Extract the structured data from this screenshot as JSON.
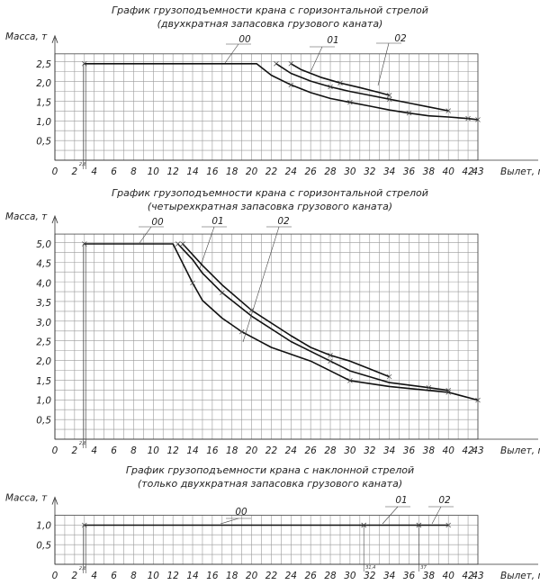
{
  "colors": {
    "curve": "#111111",
    "grid": "#9a9a9a",
    "text": "#222222"
  },
  "chart_data": [
    {
      "type": "line",
      "title": "График грузоподъемности крана с горизонтальной стрелой",
      "subtitle": "(двухкратная запасовка грузового каната)",
      "ylabel": "Масса, т",
      "xlabel": "Вылет, м",
      "xlim": [
        0,
        43
      ],
      "ylim": [
        0,
        2.5
      ],
      "x_ticks": [
        "0",
        "2",
        "4",
        "6",
        "8",
        "10",
        "12",
        "14",
        "16",
        "18",
        "20",
        "22",
        "24",
        "26",
        "28",
        "30",
        "32",
        "34",
        "36",
        "38",
        "40",
        "42",
        "43"
      ],
      "y_ticks": [
        "0,5",
        "1,0",
        "1,5",
        "2,0",
        "2,5"
      ],
      "min_reach_label": "2,8",
      "series": [
        {
          "name": "00",
          "points": [
            [
              3,
              2.5
            ],
            [
              20.5,
              2.5
            ],
            [
              22,
              2.2
            ],
            [
              24,
              1.95
            ],
            [
              26,
              1.75
            ],
            [
              28,
              1.6
            ],
            [
              30,
              1.5
            ],
            [
              32,
              1.4
            ],
            [
              34,
              1.3
            ],
            [
              36,
              1.22
            ],
            [
              38,
              1.15
            ],
            [
              40,
              1.12
            ],
            [
              42,
              1.08
            ],
            [
              43,
              1.05
            ]
          ]
        },
        {
          "name": "01",
          "points": [
            [
              22.5,
              2.5
            ],
            [
              24,
              2.25
            ],
            [
              26,
              2.05
            ],
            [
              28,
              1.9
            ],
            [
              30,
              1.78
            ],
            [
              32,
              1.68
            ],
            [
              34,
              1.58
            ],
            [
              36,
              1.48
            ],
            [
              38,
              1.38
            ],
            [
              40,
              1.28
            ]
          ]
        },
        {
          "name": "02",
          "points": [
            [
              24,
              2.5
            ],
            [
              25,
              2.35
            ],
            [
              27,
              2.15
            ],
            [
              29,
              2.0
            ],
            [
              31,
              1.88
            ],
            [
              33,
              1.75
            ],
            [
              34,
              1.68
            ]
          ]
        }
      ]
    },
    {
      "type": "line",
      "title": "График грузоподъемности крана с горизонтальной стрелой",
      "subtitle": "(четырехкратная запасовка грузового каната)",
      "ylabel": "Масса, т",
      "xlabel": "Вылет, м",
      "xlim": [
        0,
        43
      ],
      "ylim": [
        0,
        5.0
      ],
      "x_ticks": [
        "0",
        "2",
        "4",
        "6",
        "8",
        "10",
        "12",
        "14",
        "16",
        "18",
        "20",
        "22",
        "24",
        "26",
        "28",
        "30",
        "32",
        "34",
        "36",
        "38",
        "40",
        "42",
        "43"
      ],
      "y_ticks": [
        "0,5",
        "1,0",
        "1,5",
        "2,0",
        "2,5",
        "3,0",
        "3,5",
        "4,0",
        "4,5",
        "5,0"
      ],
      "min_reach_label": "2,8",
      "series": [
        {
          "name": "00",
          "points": [
            [
              3,
              5.0
            ],
            [
              12,
              5.0
            ],
            [
              13,
              4.5
            ],
            [
              14,
              4.0
            ],
            [
              15,
              3.55
            ],
            [
              17,
              3.1
            ],
            [
              19,
              2.75
            ],
            [
              22,
              2.35
            ],
            [
              26,
              2.0
            ],
            [
              30,
              1.5
            ],
            [
              34,
              1.35
            ],
            [
              38,
              1.25
            ],
            [
              40,
              1.2
            ],
            [
              43,
              1.0
            ]
          ]
        },
        {
          "name": "01",
          "points": [
            [
              12.5,
              5.0
            ],
            [
              14,
              4.6
            ],
            [
              15,
              4.25
            ],
            [
              17,
              3.75
            ],
            [
              20,
              3.15
            ],
            [
              24,
              2.5
            ],
            [
              28,
              2.0
            ],
            [
              30,
              1.75
            ],
            [
              34,
              1.45
            ],
            [
              38,
              1.32
            ],
            [
              40,
              1.25
            ]
          ]
        },
        {
          "name": "02",
          "points": [
            [
              13,
              5.0
            ],
            [
              15,
              4.45
            ],
            [
              17,
              3.95
            ],
            [
              20,
              3.3
            ],
            [
              24,
              2.65
            ],
            [
              26,
              2.35
            ],
            [
              28,
              2.15
            ],
            [
              30,
              2.0
            ],
            [
              32,
              1.8
            ],
            [
              34,
              1.6
            ]
          ]
        }
      ]
    },
    {
      "type": "line",
      "title": "График грузоподъемности крана с наклонной стрелой",
      "subtitle": "(только двухкратная запасовка грузового каната)",
      "ylabel": "Масса, т",
      "xlabel": "Вылет, м",
      "xlim": [
        0,
        43
      ],
      "ylim": [
        0,
        1.0
      ],
      "x_ticks": [
        "0",
        "2",
        "4",
        "6",
        "8",
        "10",
        "12",
        "14",
        "16",
        "18",
        "20",
        "22",
        "24",
        "26",
        "28",
        "30",
        "32",
        "34",
        "36",
        "38",
        "40",
        "42",
        "43"
      ],
      "y_ticks": [
        "0,5",
        "1,0"
      ],
      "min_reach_label": "2,8",
      "extra_tick_labels": [
        "31,4",
        "37"
      ],
      "series": [
        {
          "name": "00",
          "points": [
            [
              3,
              1.0
            ],
            [
              31.4,
              1.0
            ]
          ]
        },
        {
          "name": "01",
          "points": [
            [
              31.4,
              1.0
            ],
            [
              37,
              1.0
            ]
          ]
        },
        {
          "name": "02",
          "points": [
            [
              37,
              1.0
            ],
            [
              40,
              1.0
            ]
          ]
        }
      ]
    }
  ]
}
